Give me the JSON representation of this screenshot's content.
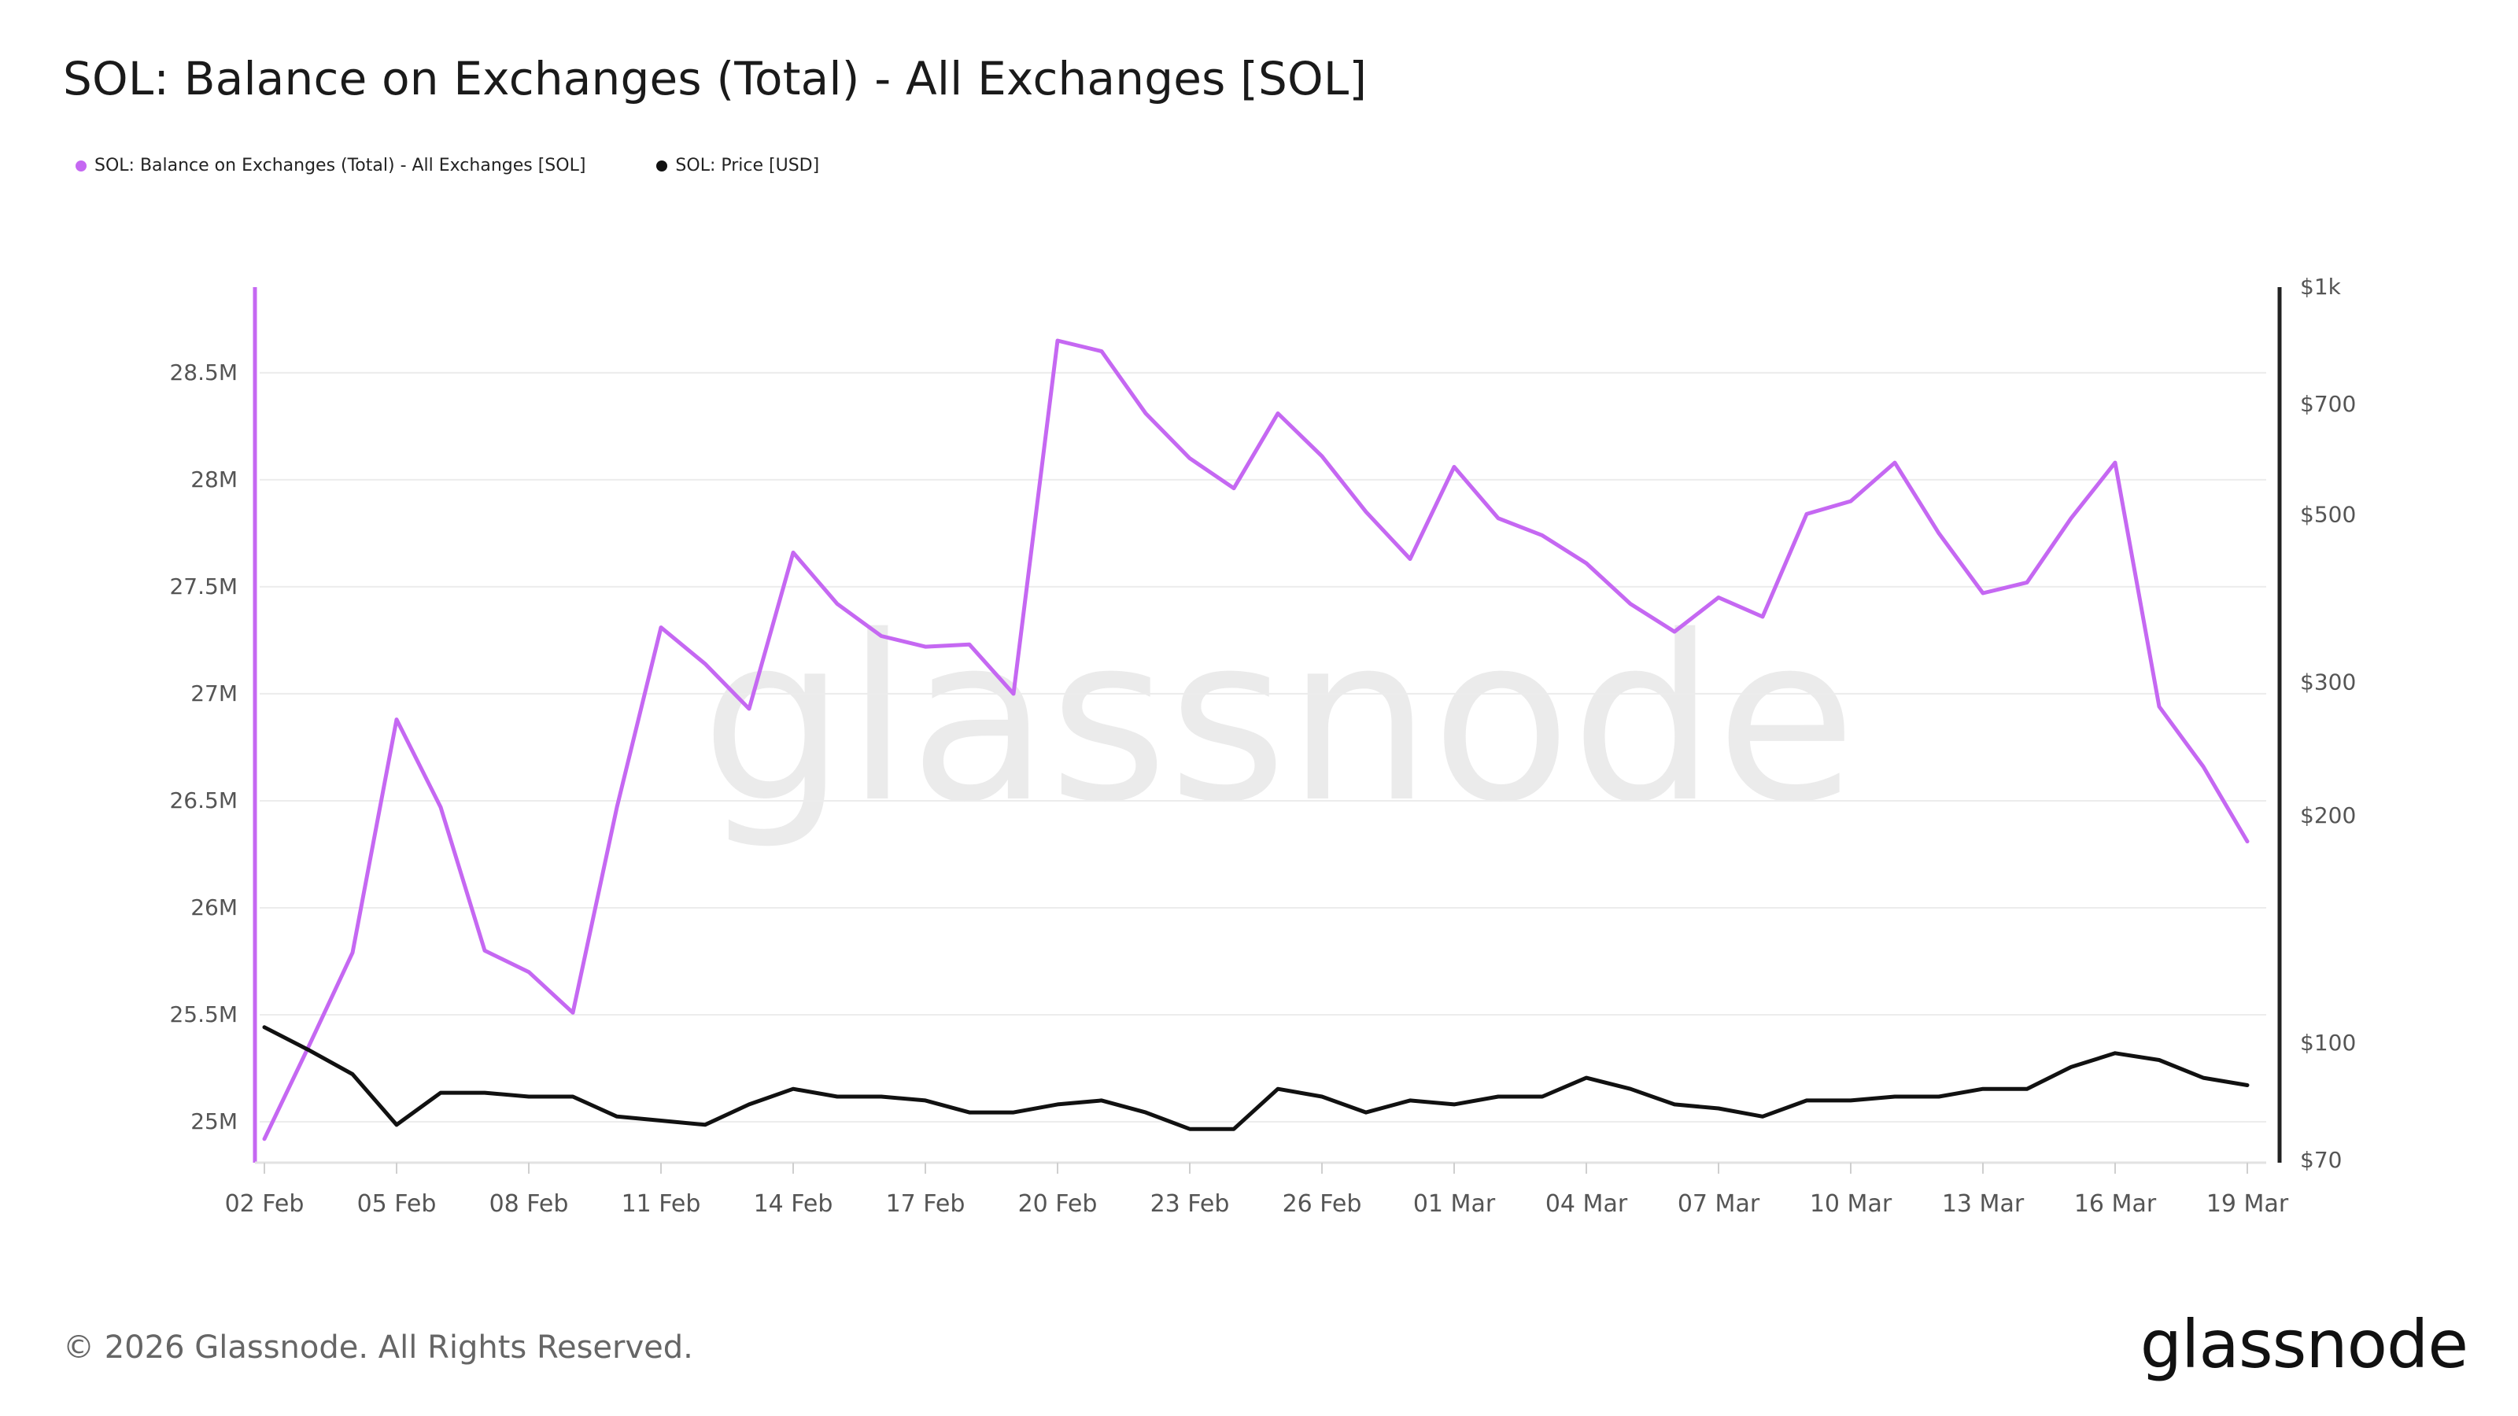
{
  "title": "SOL: Balance on Exchanges (Total) - All Exchanges [SOL]",
  "legend": [
    {
      "label": "SOL: Balance on Exchanges (Total) - All Exchanges [SOL]",
      "color": "#c568f2"
    },
    {
      "label": "SOL: Price [USD]",
      "color": "#111111"
    }
  ],
  "watermark": "glassnode",
  "footer": {
    "copyright": "© 2026 Glassnode. All Rights Reserved.",
    "logo": "glassnode"
  },
  "chart_data": {
    "type": "line",
    "x": [
      "02 Feb",
      "03 Feb",
      "04 Feb",
      "05 Feb",
      "06 Feb",
      "07 Feb",
      "08 Feb",
      "09 Feb",
      "10 Feb",
      "11 Feb",
      "12 Feb",
      "13 Feb",
      "14 Feb",
      "15 Feb",
      "16 Feb",
      "17 Feb",
      "18 Feb",
      "19 Feb",
      "20 Feb",
      "21 Feb",
      "22 Feb",
      "23 Feb",
      "24 Feb",
      "25 Feb",
      "26 Feb",
      "27 Feb",
      "28 Feb",
      "01 Mar",
      "02 Mar",
      "03 Mar",
      "04 Mar",
      "05 Mar",
      "06 Mar",
      "07 Mar",
      "08 Mar",
      "09 Mar",
      "10 Mar",
      "11 Mar",
      "12 Mar",
      "13 Mar",
      "14 Mar",
      "15 Mar",
      "16 Mar",
      "17 Mar",
      "18 Mar",
      "19 Mar"
    ],
    "x_tick_labels": [
      "02 Feb",
      "05 Feb",
      "08 Feb",
      "11 Feb",
      "14 Feb",
      "17 Feb",
      "20 Feb",
      "23 Feb",
      "26 Feb",
      "01 Mar",
      "04 Mar",
      "07 Mar",
      "10 Mar",
      "13 Mar",
      "16 Mar",
      "19 Mar"
    ],
    "series": [
      {
        "name": "SOL: Balance on Exchanges (Total) - All Exchanges [SOL]",
        "axis": "left",
        "color": "#c568f2",
        "values": [
          24.92,
          25.35,
          25.79,
          26.88,
          26.47,
          25.8,
          25.7,
          25.51,
          26.47,
          27.31,
          27.14,
          26.93,
          27.66,
          27.42,
          27.27,
          27.22,
          27.23,
          27.0,
          28.65,
          28.6,
          28.31,
          28.1,
          27.96,
          28.31,
          28.11,
          27.85,
          27.63,
          28.06,
          27.82,
          27.74,
          27.61,
          27.42,
          27.29,
          27.45,
          27.36,
          27.84,
          27.9,
          28.08,
          27.75,
          27.47,
          27.52,
          27.82,
          28.08,
          26.94,
          26.66,
          26.31
        ]
      },
      {
        "name": "SOL: Price [USD]",
        "axis": "right",
        "color": "#111111",
        "values": [
          105,
          98,
          91,
          78,
          86,
          86,
          85,
          85,
          80,
          79,
          78,
          83,
          87,
          85,
          85,
          84,
          81,
          81,
          83,
          84,
          81,
          77,
          77,
          87,
          85,
          81,
          84,
          83,
          85,
          85,
          90,
          87,
          83,
          82,
          80,
          84,
          84,
          85,
          85,
          87,
          87,
          93,
          97,
          95,
          90,
          88
        ]
      }
    ],
    "y_left": {
      "ticks": [
        25,
        25.5,
        26,
        26.5,
        27,
        27.5,
        28,
        28.5
      ],
      "tick_labels": [
        "25M",
        "25.5M",
        "26M",
        "26.5M",
        "27M",
        "27.5M",
        "28M",
        "28.5M"
      ],
      "range": [
        24.82,
        28.9
      ]
    },
    "y_right": {
      "scale": "log",
      "ticks": [
        70,
        100,
        200,
        300,
        500,
        700,
        1000
      ],
      "tick_labels": [
        "$70",
        "$100",
        "$200",
        "$300",
        "$500",
        "$700",
        "$1k"
      ],
      "range": [
        70,
        1000
      ]
    },
    "grid": true,
    "legend_position": "top-left"
  }
}
